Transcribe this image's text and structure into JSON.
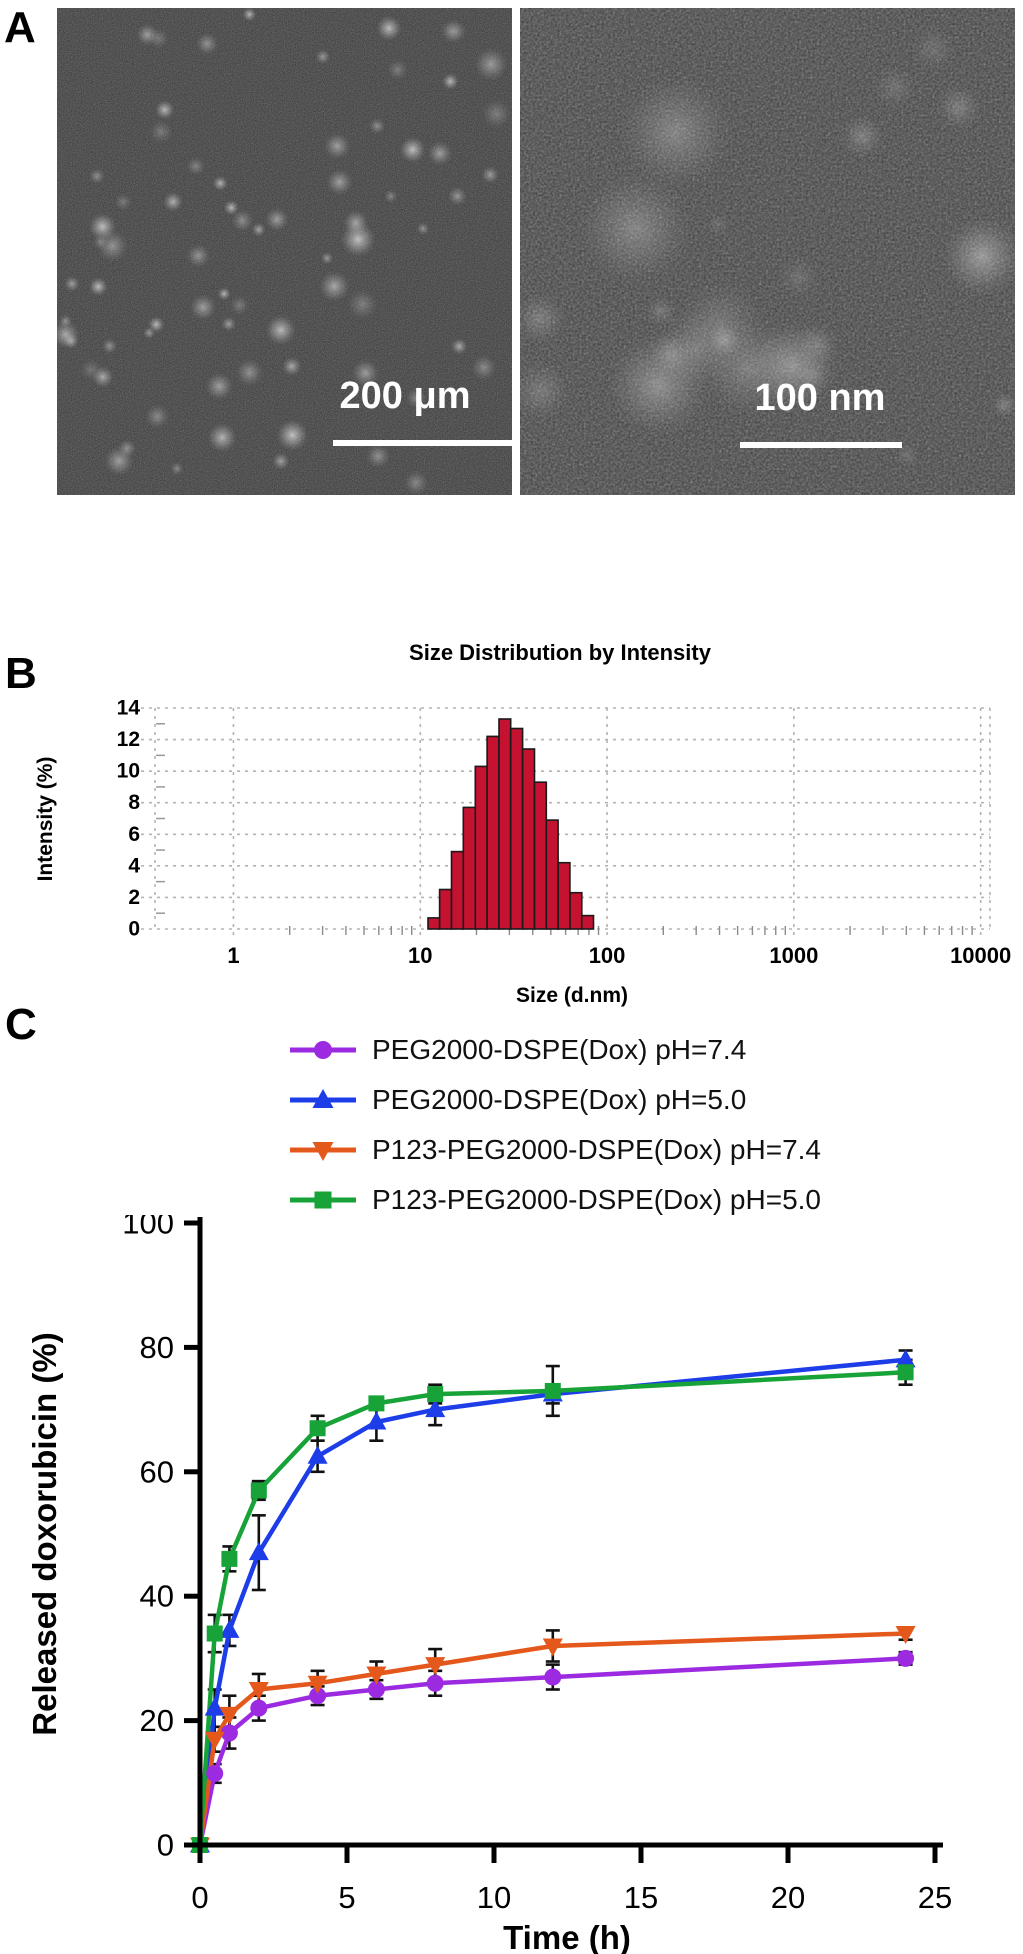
{
  "figure": {
    "panel_a": {
      "label": "A",
      "left_image": {
        "scale_bar_text": "200 μm"
      },
      "right_image": {
        "scale_bar_text": "100 nm"
      }
    },
    "panel_b": {
      "label": "B"
    },
    "panel_c": {
      "label": "C"
    }
  },
  "chart_data": [
    {
      "id": "size-distribution-histogram",
      "type": "bar",
      "title": "Size Distribution by Intensity",
      "xlabel": "Size (d.nm)",
      "ylabel": "Intensity (%)",
      "x_scale": "log10",
      "x_ticks": [
        1,
        10,
        100,
        1000,
        10000
      ],
      "y_ticks": [
        0,
        2,
        4,
        6,
        8,
        10,
        12,
        14
      ],
      "ylim": [
        0,
        14
      ],
      "grid": "dashed",
      "bar_color": "#c41230",
      "bar_edge_color": "#1a1a1a",
      "bin_edges_dnm": [
        11.0,
        12.7,
        14.7,
        17.0,
        19.7,
        22.8,
        26.4,
        30.5,
        35.3,
        40.9,
        47.3,
        54.7,
        63.3,
        73.2,
        84.7
      ],
      "intensity_pct": [
        0.7,
        2.5,
        4.9,
        7.7,
        10.3,
        12.2,
        13.3,
        12.7,
        11.4,
        9.3,
        6.9,
        4.2,
        2.3,
        0.85
      ]
    },
    {
      "id": "doxorubicin-release-curves",
      "type": "line",
      "xlabel": "Time (h)",
      "ylabel": "Released doxorubicin (%)",
      "xlim": [
        0,
        25
      ],
      "ylim": [
        0,
        100
      ],
      "x_ticks": [
        0,
        5,
        10,
        15,
        20,
        25
      ],
      "y_ticks": [
        0,
        20,
        40,
        60,
        80,
        100
      ],
      "legend_position": "top",
      "time_h": [
        0,
        0.5,
        1,
        2,
        4,
        6,
        8,
        12,
        24
      ],
      "series": [
        {
          "name": "PEG2000-DSPE(Dox) pH=7.4",
          "color": "#9c2ae0",
          "marker": "circle",
          "values": [
            0,
            11.5,
            18,
            22,
            24,
            25,
            26,
            27,
            30
          ],
          "errors": [
            0,
            1.5,
            2.5,
            2,
            1.5,
            1.5,
            2,
            2,
            1
          ]
        },
        {
          "name": "PEG2000-DSPE(Dox) pH=5.0",
          "color": "#1c3de8",
          "marker": "triangle-up",
          "values": [
            0,
            22,
            34.5,
            47,
            62.5,
            68,
            70,
            72.5,
            78
          ],
          "errors": [
            0,
            3,
            2.5,
            6,
            2.5,
            3,
            2.5,
            1.5,
            1.5
          ]
        },
        {
          "name": "P123-PEG2000-DSPE(Dox) pH=7.4",
          "color": "#e4581c",
          "marker": "triangle-down",
          "values": [
            0,
            17,
            21,
            25,
            26,
            27.5,
            29,
            32,
            34
          ],
          "errors": [
            0,
            2,
            3,
            2.5,
            2,
            2,
            2.5,
            2.5,
            1
          ]
        },
        {
          "name": "P123-PEG2000-DSPE(Dox) pH=5.0",
          "color": "#17a338",
          "marker": "square",
          "values": [
            0,
            34,
            46,
            57,
            67,
            71,
            72.5,
            73,
            76
          ],
          "errors": [
            0,
            3,
            2,
            1.5,
            2,
            1,
            1.5,
            4,
            2
          ]
        }
      ]
    }
  ]
}
